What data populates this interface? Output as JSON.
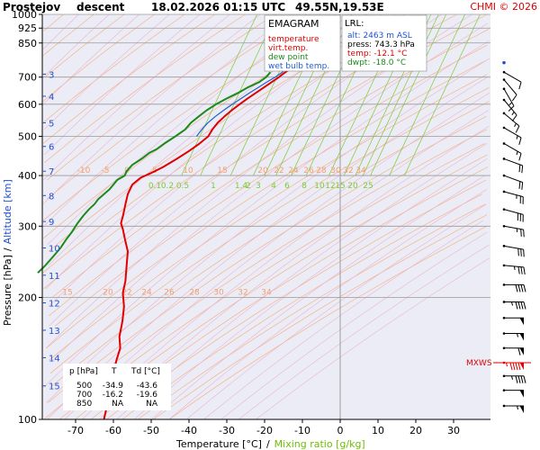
{
  "header": {
    "station": "Prostejov",
    "mode": "descent",
    "datetime": "18.02.2026 01:15 UTC",
    "coords": "49.55N,19.53E",
    "credit": "CHMI © 2026"
  },
  "legend": {
    "title": "EMAGRAM",
    "items": [
      {
        "label": "temperature",
        "color": "#e00000"
      },
      {
        "label": "virt.temp.",
        "color": "#e00000"
      },
      {
        "label": "dew point",
        "color": "#1a8a1a"
      },
      {
        "label": "wet bulb temp.",
        "color": "#2060d0"
      }
    ]
  },
  "lrl": {
    "title": "LRL:",
    "alt": "alt: 2463 m ASL",
    "press": "press: 743.3 hPa",
    "temp": "temp: -12.1 °C",
    "dwpt": "dwpt: -18.0 °C",
    "colors": {
      "alt": "#2050d0",
      "press": "#000000",
      "temp": "#e00000",
      "dwpt": "#1a8a1a"
    }
  },
  "mxws_label": "MXWS",
  "axes": {
    "ylabel_pressure": "Pressure [hPa]",
    "ylabel_sep": "/",
    "ylabel_alt": "Altitude [km]",
    "xlabel_temp": "Temperature [°C]",
    "xlabel_sep": "/",
    "xlabel_mix": "Mixing ratio [g/kg]"
  },
  "table": {
    "headers": [
      "p [hPa]",
      "T",
      "Td [°C]"
    ],
    "rows": [
      [
        "500",
        "-34.9",
        "-43.6"
      ],
      [
        "700",
        "-16.2",
        "-19.6"
      ],
      [
        "850",
        "NA",
        "NA"
      ]
    ]
  },
  "chart_data": {
    "type": "line",
    "xlim": [
      -80,
      35
    ],
    "pressure_range": [
      1000,
      100
    ],
    "y_scale": "log",
    "x_ticks": [
      -70,
      -60,
      -50,
      -40,
      -30,
      -20,
      -10,
      0,
      10,
      20,
      30
    ],
    "pressure_ticks": [
      {
        "p": 100,
        "label": "100"
      },
      {
        "p": 200,
        "label": "200"
      },
      {
        "p": 300,
        "label": "300"
      },
      {
        "p": 400,
        "label": "400"
      },
      {
        "p": 500,
        "label": "500"
      },
      {
        "p": 600,
        "label": "600"
      },
      {
        "p": 700,
        "label": "700"
      },
      {
        "p": 850,
        "label": "850"
      },
      {
        "p": 925,
        "label": "925"
      },
      {
        "p": 1000,
        "label": "1000"
      }
    ],
    "altitude_ticks": [
      {
        "p": 712,
        "label": "3"
      },
      {
        "p": 628,
        "label": "4"
      },
      {
        "p": 540,
        "label": "5"
      },
      {
        "p": 472,
        "label": "6"
      },
      {
        "p": 410,
        "label": "7"
      },
      {
        "p": 357,
        "label": "8"
      },
      {
        "p": 308,
        "label": "9"
      },
      {
        "p": 265,
        "label": "10"
      },
      {
        "p": 227,
        "label": "11"
      },
      {
        "p": 194,
        "label": "12"
      },
      {
        "p": 166,
        "label": "13"
      },
      {
        "p": 142,
        "label": "14"
      },
      {
        "p": 121,
        "label": "15"
      }
    ],
    "isotherm_labels": {
      "p": 200,
      "values": [
        15,
        20,
        22,
        24,
        26,
        28,
        30,
        32,
        34
      ]
    },
    "isotherm_labels_low": {
      "p": 400,
      "values": [
        -10,
        -5,
        0,
        5,
        10,
        15,
        20,
        22,
        24,
        26,
        28,
        30,
        32,
        34
      ]
    },
    "mixing_ratio_labels": [
      {
        "label": "0.1",
        "t": -42
      },
      {
        "label": "0.2",
        "t": -37
      },
      {
        "label": "0.5",
        "t": -29
      },
      {
        "label": "1",
        "t": -23
      },
      {
        "label": "1.4",
        "t": -20
      },
      {
        "label": "2",
        "t": -17
      },
      {
        "label": "3",
        "t": -13
      },
      {
        "label": "4",
        "t": -9
      },
      {
        "label": "6",
        "t": -3
      },
      {
        "label": "8",
        "t": 1
      },
      {
        "label": "10",
        "t": 4
      },
      {
        "label": "12",
        "t": 6
      },
      {
        "label": "15",
        "t": 8
      },
      {
        "label": "20",
        "t": 13
      },
      {
        "label": "25",
        "t": 17
      }
    ],
    "series": [
      {
        "name": "temperature",
        "color": "#e00000",
        "points": [
          [
            742,
            -12.1
          ],
          [
            735,
            -13
          ],
          [
            720,
            -14.5
          ],
          [
            705,
            -15.8
          ],
          [
            700,
            -16.2
          ],
          [
            680,
            -18.2
          ],
          [
            660,
            -20.2
          ],
          [
            640,
            -22.3
          ],
          [
            620,
            -24.5
          ],
          [
            600,
            -26.6
          ],
          [
            580,
            -28.7
          ],
          [
            560,
            -30.6
          ],
          [
            540,
            -32.4
          ],
          [
            520,
            -33.8
          ],
          [
            500,
            -34.9
          ],
          [
            480,
            -37.2
          ],
          [
            460,
            -40
          ],
          [
            440,
            -43.2
          ],
          [
            420,
            -46.8
          ],
          [
            405,
            -50.2
          ],
          [
            395,
            -52.8
          ],
          [
            380,
            -55
          ],
          [
            360,
            -56.2
          ],
          [
            340,
            -56.8
          ],
          [
            320,
            -57.4
          ],
          [
            305,
            -58
          ],
          [
            295,
            -57.5
          ],
          [
            280,
            -57
          ],
          [
            260,
            -56.2
          ],
          [
            240,
            -56.5
          ],
          [
            220,
            -56.8
          ],
          [
            205,
            -57.5
          ],
          [
            190,
            -57.2
          ],
          [
            175,
            -57.6
          ],
          [
            160,
            -58.4
          ],
          [
            150,
            -58.2
          ],
          [
            140,
            -59.2
          ],
          [
            130,
            -60
          ],
          [
            120,
            -60.8
          ],
          [
            110,
            -61.5
          ],
          [
            100,
            -62.5
          ]
        ]
      },
      {
        "name": "dew point",
        "color": "#1a8a1a",
        "points": [
          [
            720,
            -18.5
          ],
          [
            710,
            -19
          ],
          [
            700,
            -19.6
          ],
          [
            680,
            -21.5
          ],
          [
            660,
            -24.5
          ],
          [
            640,
            -27
          ],
          [
            620,
            -30
          ],
          [
            600,
            -32.8
          ],
          [
            580,
            -35.3
          ],
          [
            560,
            -37.4
          ],
          [
            540,
            -39.5
          ],
          [
            520,
            -41
          ],
          [
            500,
            -43.6
          ],
          [
            480,
            -46.5
          ],
          [
            465,
            -48.5
          ],
          [
            455,
            -50.5
          ],
          [
            440,
            -52.5
          ],
          [
            425,
            -55
          ],
          [
            410,
            -56.5
          ],
          [
            400,
            -57
          ],
          [
            390,
            -59
          ],
          [
            380,
            -60
          ],
          [
            370,
            -61
          ],
          [
            360,
            -62.5
          ],
          [
            350,
            -64
          ],
          [
            340,
            -65
          ],
          [
            330,
            -66.5
          ],
          [
            318,
            -68
          ],
          [
            305,
            -69.5
          ],
          [
            290,
            -71
          ],
          [
            278,
            -72.5
          ],
          [
            265,
            -74
          ],
          [
            252,
            -76
          ],
          [
            240,
            -78
          ],
          [
            230,
            -80
          ]
        ]
      },
      {
        "name": "wet bulb temp.",
        "color": "#2060d0",
        "points": [
          [
            742,
            -13.8
          ],
          [
            720,
            -15.3
          ],
          [
            700,
            -17.2
          ],
          [
            680,
            -19.5
          ],
          [
            660,
            -21.7
          ],
          [
            640,
            -24
          ],
          [
            620,
            -26.2
          ],
          [
            600,
            -28.5
          ],
          [
            580,
            -30.8
          ],
          [
            560,
            -33
          ],
          [
            540,
            -35
          ],
          [
            520,
            -36.6
          ],
          [
            500,
            -38
          ]
        ]
      }
    ]
  },
  "wind_profile": {
    "color": "#000000",
    "highlight_color": "#e00000",
    "mxws_p": 138,
    "barbs": [
      {
        "p": 108,
        "dir": 270,
        "kt": 55
      },
      {
        "p": 118,
        "dir": 270,
        "kt": 50
      },
      {
        "p": 128,
        "dir": 270,
        "kt": 45
      },
      {
        "p": 138,
        "dir": 270,
        "kt": 95
      },
      {
        "p": 150,
        "dir": 270,
        "kt": 60
      },
      {
        "p": 163,
        "dir": 270,
        "kt": 55
      },
      {
        "p": 178,
        "dir": 270,
        "kt": 50
      },
      {
        "p": 195,
        "dir": 270,
        "kt": 45
      },
      {
        "p": 215,
        "dir": 270,
        "kt": 40
      },
      {
        "p": 240,
        "dir": 275,
        "kt": 35
      },
      {
        "p": 268,
        "dir": 280,
        "kt": 30
      },
      {
        "p": 300,
        "dir": 280,
        "kt": 25
      },
      {
        "p": 330,
        "dir": 285,
        "kt": 30
      },
      {
        "p": 365,
        "dir": 285,
        "kt": 25
      },
      {
        "p": 400,
        "dir": 290,
        "kt": 20
      },
      {
        "p": 440,
        "dir": 290,
        "kt": 20
      },
      {
        "p": 480,
        "dir": 300,
        "kt": 15
      },
      {
        "p": 525,
        "dir": 300,
        "kt": 15
      },
      {
        "p": 570,
        "dir": 310,
        "kt": 15
      },
      {
        "p": 615,
        "dir": 320,
        "kt": 15
      },
      {
        "p": 655,
        "dir": 330,
        "kt": 15
      },
      {
        "p": 690,
        "dir": 320,
        "kt": 10
      },
      {
        "p": 720,
        "dir": 300,
        "kt": 10
      }
    ]
  }
}
